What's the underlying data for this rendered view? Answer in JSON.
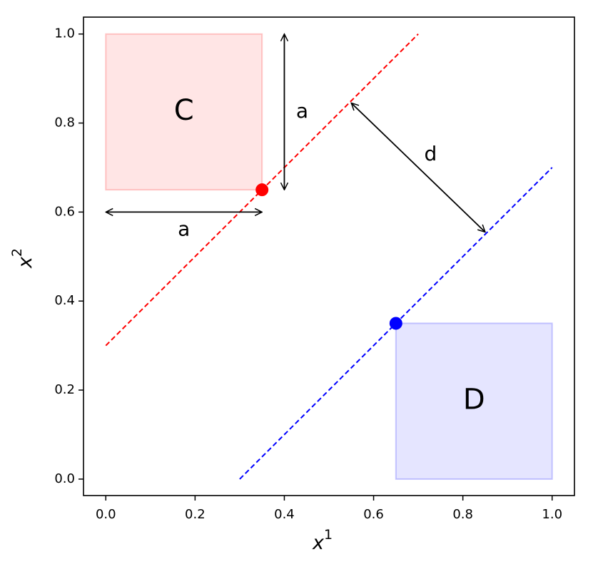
{
  "chart_data": {
    "type": "line",
    "xlabel": "x",
    "xlabel_sup": "1",
    "ylabel": "x",
    "ylabel_sup": "2",
    "xlim": [
      -0.05,
      1.05
    ],
    "ylim": [
      -0.037,
      1.038
    ],
    "xticks": [
      {
        "value": 0,
        "label": "0.0"
      },
      {
        "value": 0.2,
        "label": "0.2"
      },
      {
        "value": 0.4,
        "label": "0.4"
      },
      {
        "value": 0.6,
        "label": "0.6"
      },
      {
        "value": 0.8,
        "label": "0.8"
      },
      {
        "value": 1,
        "label": "1.0"
      }
    ],
    "yticks": [
      {
        "value": 0,
        "label": "0.0"
      },
      {
        "value": 0.2,
        "label": "0.2"
      },
      {
        "value": 0.4,
        "label": "0.4"
      },
      {
        "value": 0.6,
        "label": "0.6"
      },
      {
        "value": 0.8,
        "label": "0.8"
      },
      {
        "value": 1,
        "label": "1.0"
      }
    ],
    "grid": false,
    "series": [
      {
        "color": "#ff0000",
        "linestyle": "dashed",
        "x": [
          0,
          0.7
        ],
        "values": [
          0.3,
          1.0
        ]
      },
      {
        "color": "#0000ff",
        "linestyle": "dashed",
        "x": [
          0.3,
          1.0
        ],
        "values": [
          0,
          0.7
        ]
      }
    ],
    "points": [
      {
        "color": "#ff0000",
        "x": 0.35,
        "y": 0.65
      },
      {
        "color": "#0000ff",
        "x": 0.65,
        "y": 0.35
      }
    ],
    "regions": [
      {
        "label": "C",
        "color": "#ff0000",
        "x": [
          0,
          0.35
        ],
        "y": [
          0.65,
          1.0
        ]
      },
      {
        "label": "D",
        "color": "#0000ff",
        "x": [
          0.65,
          1.0
        ],
        "y": [
          0,
          0.35
        ]
      }
    ],
    "arrows": [
      {
        "label": "a",
        "x": [
          0,
          0.35
        ],
        "y": [
          0.6,
          0.6
        ]
      },
      {
        "label": "a",
        "x": [
          0.4,
          0.4
        ],
        "y": [
          0.65,
          1.0
        ]
      },
      {
        "label": "d",
        "x": [
          0.85,
          0.55
        ],
        "y": [
          0.555,
          0.845
        ]
      }
    ]
  }
}
